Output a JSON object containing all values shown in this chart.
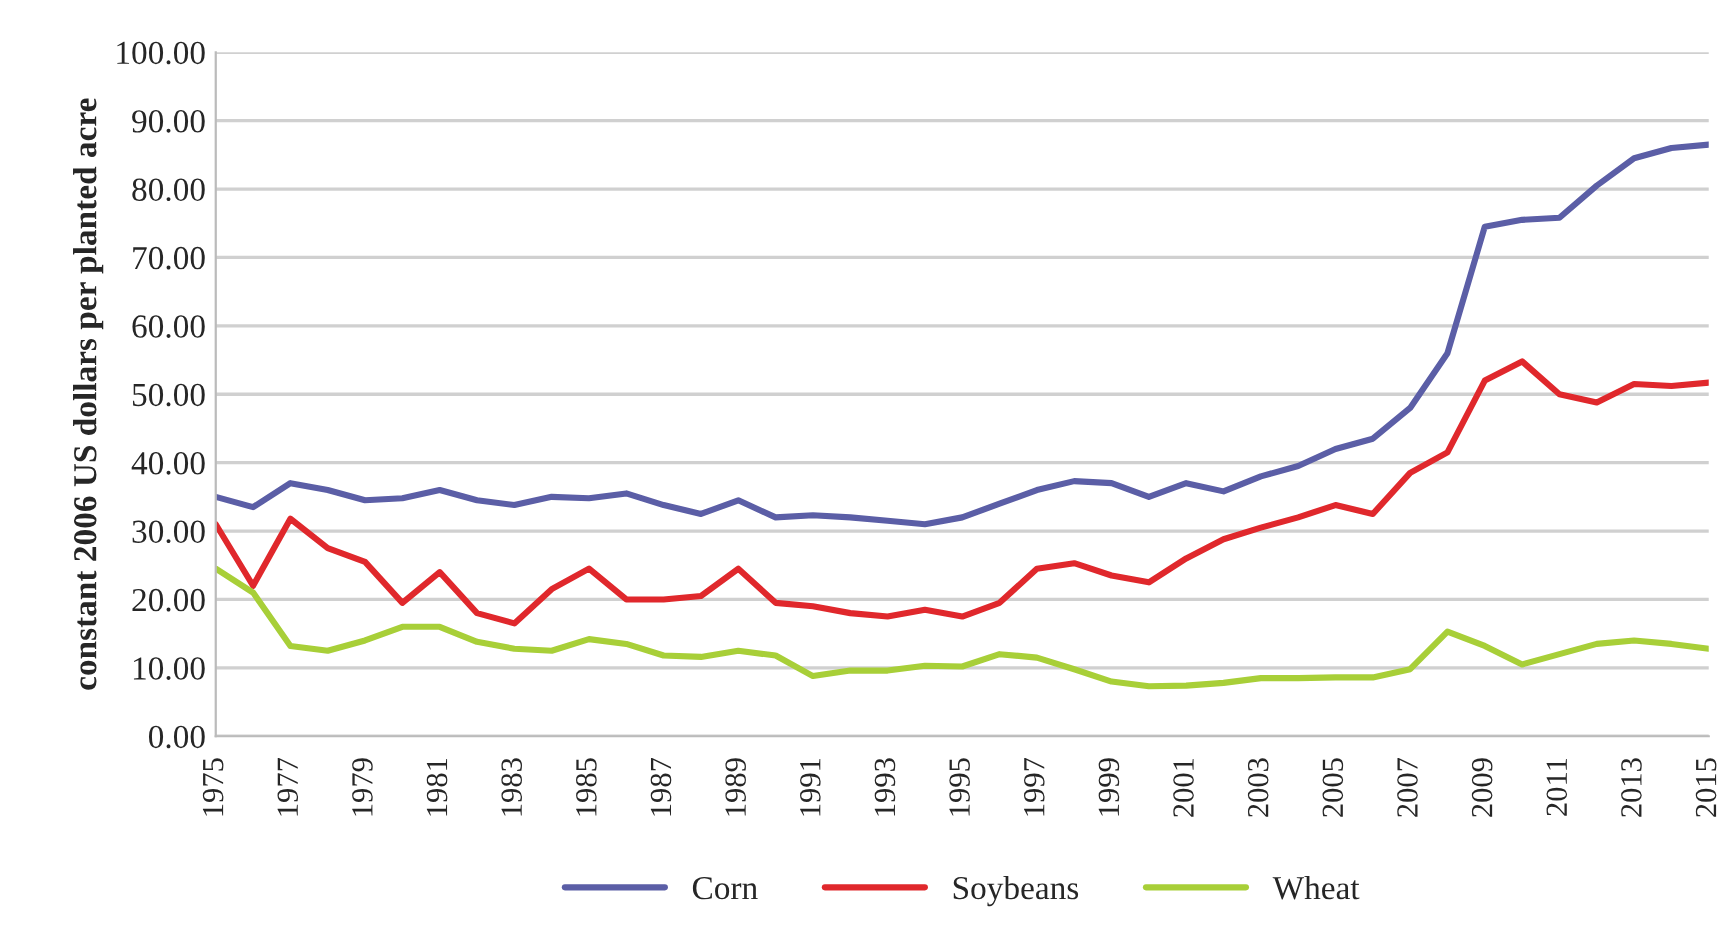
{
  "chart_data": {
    "type": "line",
    "ylabel": "constant 2006 US dollars per planted acre",
    "categories": [
      "1975",
      null,
      "1977",
      null,
      "1979",
      null,
      "1981",
      null,
      "1983",
      null,
      "1985",
      null,
      "1987",
      null,
      "1989",
      null,
      "1991",
      null,
      "1993",
      null,
      "1995",
      null,
      "1997",
      null,
      "1999",
      null,
      "2001",
      null,
      "2003",
      null,
      "2005",
      null,
      "2007",
      null,
      "2009",
      null,
      "2011",
      null,
      "2013",
      null,
      "2015"
    ],
    "series": [
      {
        "name": "Corn",
        "color": "#5b5ea6",
        "values": [
          35,
          33.5,
          37,
          36,
          34.5,
          34.8,
          36,
          34.5,
          33.8,
          35,
          34.8,
          35.5,
          33.8,
          32.5,
          34.5,
          32,
          32.3,
          32,
          31.5,
          31,
          32,
          34,
          36,
          37.3,
          37,
          35,
          37,
          35.8,
          38,
          39.5,
          42,
          43.5,
          48,
          56,
          74.5,
          75.5,
          75.8,
          80.5,
          84.5,
          86,
          86.5
        ]
      },
      {
        "name": "Soybeans",
        "color": "#e0282c",
        "values": [
          31,
          22,
          31.8,
          27.5,
          25.5,
          19.5,
          24,
          18,
          16.5,
          21.5,
          24.5,
          20,
          20,
          20.5,
          24.5,
          19.5,
          19,
          18,
          17.5,
          18.5,
          17.5,
          19.5,
          24.5,
          25.3,
          23.5,
          22.5,
          26,
          28.8,
          30.5,
          32,
          33.8,
          32.5,
          38.5,
          41.5,
          52,
          54.8,
          50,
          48.8,
          51.5,
          51.2,
          51.7
        ]
      },
      {
        "name": "Wheat",
        "color": "#a8cf38",
        "values": [
          24.5,
          21,
          13.2,
          12.5,
          14,
          16,
          16,
          13.8,
          12.8,
          12.5,
          14.2,
          13.5,
          11.8,
          11.6,
          12.5,
          11.8,
          8.8,
          9.6,
          9.6,
          10.3,
          10.2,
          12,
          11.5,
          9.8,
          8,
          7.3,
          7.4,
          7.8,
          8.5,
          8.5,
          8.6,
          8.6,
          9.8,
          15.3,
          13.2,
          10.5,
          12,
          13.5,
          14,
          13.5,
          12.8
        ]
      }
    ],
    "ylim": [
      0,
      100
    ],
    "yticks": [
      {
        "value": 0,
        "label": "0.00"
      },
      {
        "value": 10,
        "label": "10.00"
      },
      {
        "value": 20,
        "label": "20.00"
      },
      {
        "value": 30,
        "label": "30.00"
      },
      {
        "value": 40,
        "label": "40.00"
      },
      {
        "value": 50,
        "label": "50.00"
      },
      {
        "value": 60,
        "label": "60.00"
      },
      {
        "value": 70,
        "label": "70.00"
      },
      {
        "value": 80,
        "label": "80.00"
      },
      {
        "value": 90,
        "label": "90.00"
      },
      {
        "value": 100,
        "label": "100.00"
      }
    ],
    "grid": "y",
    "legend": "bottom",
    "marker": "none",
    "line_style": "solid"
  }
}
